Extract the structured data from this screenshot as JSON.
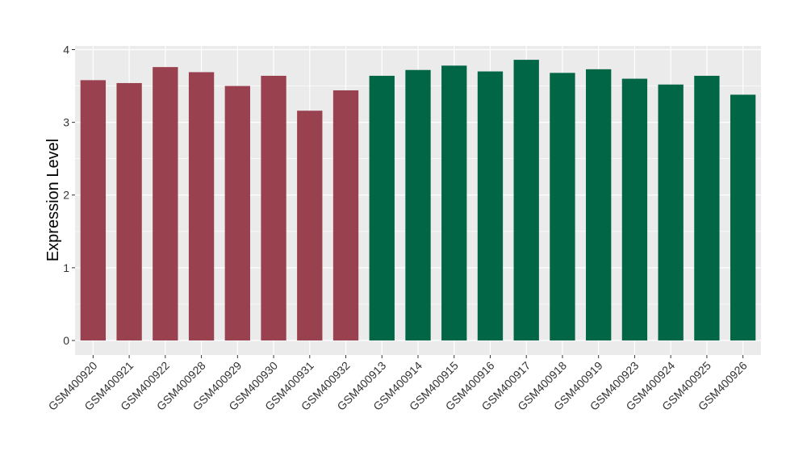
{
  "chart_data": {
    "type": "bar",
    "title": "",
    "xlabel": "",
    "ylabel": "Expression Level",
    "ylim": [
      -0.2,
      4.05
    ],
    "yticks": [
      0,
      1,
      2,
      3,
      4
    ],
    "grid": true,
    "categories": [
      "GSM400920",
      "GSM400921",
      "GSM400922",
      "GSM400928",
      "GSM400929",
      "GSM400930",
      "GSM400931",
      "GSM400932",
      "GSM400913",
      "GSM400914",
      "GSM400915",
      "GSM400916",
      "GSM400917",
      "GSM400918",
      "GSM400919",
      "GSM400923",
      "GSM400924",
      "GSM400925",
      "GSM400926"
    ],
    "values": [
      3.58,
      3.54,
      3.76,
      3.69,
      3.5,
      3.64,
      3.16,
      3.44,
      3.64,
      3.72,
      3.78,
      3.7,
      3.86,
      3.68,
      3.73,
      3.6,
      3.52,
      3.64,
      3.38
    ],
    "bar_colors": [
      "#9a4150",
      "#9a4150",
      "#9a4150",
      "#9a4150",
      "#9a4150",
      "#9a4150",
      "#9a4150",
      "#9a4150",
      "#006645",
      "#006645",
      "#006645",
      "#006645",
      "#006645",
      "#006645",
      "#006645",
      "#006645",
      "#006645",
      "#006645",
      "#006645"
    ],
    "panel_background": "#ebebeb",
    "grid_color": "#ffffff"
  }
}
